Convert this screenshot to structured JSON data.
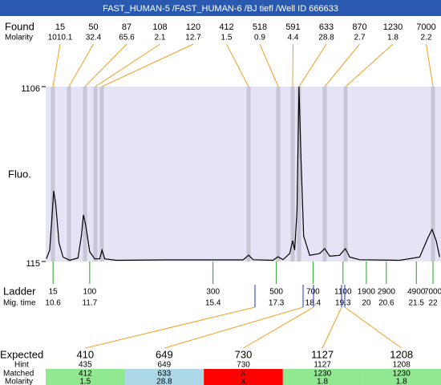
{
  "title": "FAST_HUMAN-5 /FAST_HUMAN-6 /BJ tiefl /Well ID 666633",
  "found": {
    "label": "Found",
    "molarity_label": "Molarity",
    "sizes": [
      15,
      50,
      87,
      108,
      120,
      412,
      518,
      591,
      633,
      870,
      1230,
      7000
    ],
    "molarities": [
      1010.1,
      32.4,
      65.6,
      2.1,
      12.7,
      1.5,
      0.9,
      4.4,
      28.8,
      2.7,
      1.8,
      2.2
    ]
  },
  "chart_data": {
    "type": "line",
    "y_label": "Fluo.",
    "x": [
      10.4,
      10.5,
      10.58,
      10.62,
      10.68,
      10.78,
      10.9,
      11.1,
      11.35,
      11.45,
      11.51,
      11.58,
      11.7,
      11.85,
      12.0,
      12.07,
      12.15,
      12.5,
      14.0,
      16.3,
      16.47,
      16.6,
      17.2,
      17.35,
      17.5,
      17.7,
      17.79,
      17.85,
      17.92,
      17.98,
      18.04,
      18.12,
      18.3,
      18.6,
      18.75,
      18.9,
      19.2,
      19.37,
      19.5,
      19.8,
      21.0,
      21.6,
      21.85,
      21.97,
      22.1,
      22.2
    ],
    "values": [
      130,
      180,
      400,
      515,
      440,
      220,
      140,
      122,
      135,
      260,
      379,
      320,
      170,
      130,
      130,
      179,
      130,
      122,
      124,
      124,
      151,
      125,
      122,
      142,
      125,
      160,
      233,
      180,
      400,
      1106,
      700,
      260,
      150,
      160,
      188,
      145,
      150,
      188,
      140,
      125,
      122,
      140,
      250,
      297,
      230,
      140
    ],
    "color": "#000000",
    "background": "#e4e4f6",
    "xlim": [
      10.38,
      22.24
    ],
    "ylim": [
      115,
      1106
    ],
    "yticks": [
      115,
      1106
    ]
  },
  "ladder": {
    "label": "Ladder",
    "time_label": "Mig. time",
    "sizes": [
      15,
      100,
      300,
      500,
      700,
      1100,
      1900,
      2900,
      4900,
      7000
    ],
    "times": [
      10.6,
      11.7,
      15.4,
      17.3,
      18.4,
      19.3,
      20,
      20.6,
      21.5,
      22
    ]
  },
  "expected": {
    "label": "Expected",
    "hint_label": "Hint",
    "matched_label": "Matched",
    "molarity_label": "Molarity",
    "sizes": [
      410,
      649,
      730,
      1127,
      1208
    ],
    "hints": [
      435,
      649,
      730,
      1127,
      1208
    ],
    "matched": [
      412,
      633,
      "X",
      1230,
      1230
    ],
    "molarities": [
      1.5,
      28.8,
      "X",
      1.8,
      1.8
    ],
    "colors": [
      "#90e890",
      "#add8e6",
      "#ff0000",
      "#90e890",
      "#90e890"
    ]
  }
}
